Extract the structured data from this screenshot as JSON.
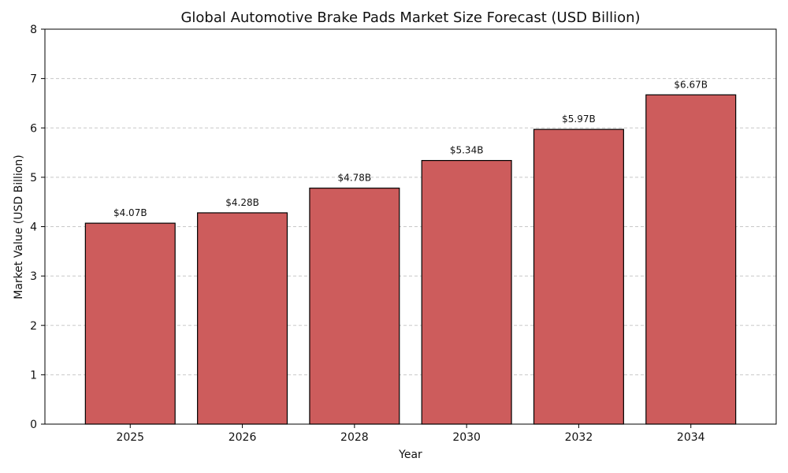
{
  "chart_data": {
    "type": "bar",
    "title": "Global Automotive Brake Pads Market Size Forecast (USD Billion)",
    "xlabel": "Year",
    "ylabel": "Market Value (USD Billion)",
    "categories": [
      "2025",
      "2026",
      "2028",
      "2030",
      "2032",
      "2034"
    ],
    "values": [
      4.07,
      4.28,
      4.78,
      5.34,
      5.97,
      6.67
    ],
    "data_labels": [
      "$4.07B",
      "$4.28B",
      "$4.78B",
      "$5.34B",
      "$5.97B",
      "$6.67B"
    ],
    "ylim": [
      0,
      8
    ],
    "yticks": [
      "0",
      "1",
      "2",
      "3",
      "4",
      "5",
      "6",
      "7",
      "8"
    ],
    "grid": "y-dashed",
    "bar_color": "#cd5c5c",
    "bar_edge_color": "#000000"
  }
}
